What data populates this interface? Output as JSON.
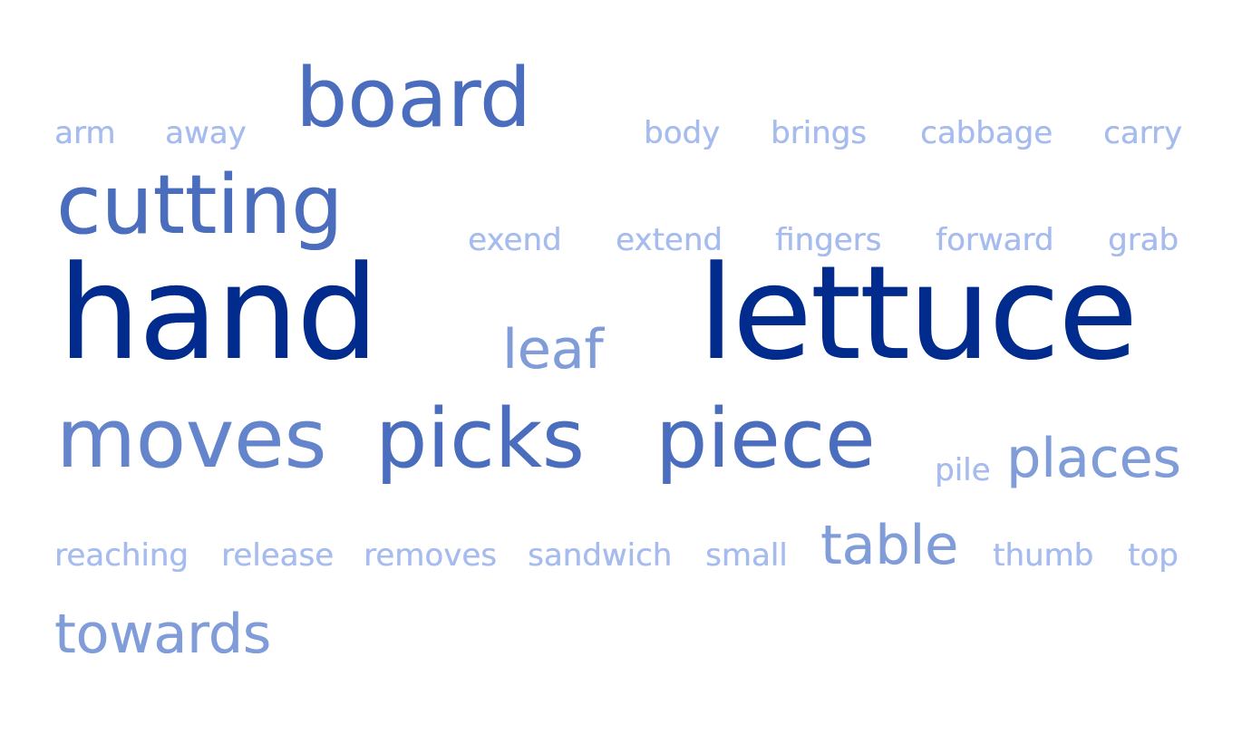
{
  "words": [
    {
      "text": "arm",
      "level": 1,
      "color": "#a6bbee"
    },
    {
      "text": "away",
      "level": 1,
      "color": "#a6bbee"
    },
    {
      "text": "board",
      "level": 3,
      "color": "#4a6ebd"
    },
    {
      "text": "body",
      "level": 1,
      "color": "#a6bbee"
    },
    {
      "text": "brings",
      "level": 1,
      "color": "#a6bbee"
    },
    {
      "text": "cabbage",
      "level": 1,
      "color": "#a6bbee"
    },
    {
      "text": "carry",
      "level": 1,
      "color": "#a6bbee"
    },
    {
      "text": "cutting",
      "level": 3,
      "color": "#4a6ebd"
    },
    {
      "text": "exend",
      "level": 1,
      "color": "#a6bbee"
    },
    {
      "text": "extend",
      "level": 1,
      "color": "#a6bbee"
    },
    {
      "text": "fingers",
      "level": 1,
      "color": "#a6bbee"
    },
    {
      "text": "forward",
      "level": 1,
      "color": "#a6bbee"
    },
    {
      "text": "grab",
      "level": 1,
      "color": "#a6bbee"
    },
    {
      "text": "hand",
      "level": 4,
      "color": "#012b8c"
    },
    {
      "text": "leaf",
      "level": 2,
      "color": "#809dd9"
    },
    {
      "text": "lettuce",
      "level": 4,
      "color": "#012b8c"
    },
    {
      "text": "moves",
      "level": 3,
      "color": "#6484cb"
    },
    {
      "text": "picks",
      "level": 3,
      "color": "#4a6ebd"
    },
    {
      "text": "piece",
      "level": 3,
      "color": "#4a6ebd"
    },
    {
      "text": "pile",
      "level": 1,
      "color": "#a6bbee"
    },
    {
      "text": "places",
      "level": 2,
      "color": "#809dd9"
    },
    {
      "text": "reaching",
      "level": 1,
      "color": "#a6bbee"
    },
    {
      "text": "release",
      "level": 1,
      "color": "#a6bbee"
    },
    {
      "text": "removes",
      "level": 1,
      "color": "#a6bbee"
    },
    {
      "text": "sandwich",
      "level": 1,
      "color": "#a6bbee"
    },
    {
      "text": "small",
      "level": 1,
      "color": "#a6bbee"
    },
    {
      "text": "table",
      "level": 2,
      "color": "#809dd9"
    },
    {
      "text": "thumb",
      "level": 1,
      "color": "#a6bbee"
    },
    {
      "text": "top",
      "level": 1,
      "color": "#a6bbee"
    },
    {
      "text": "towards",
      "level": 2,
      "color": "#809dd9"
    }
  ]
}
